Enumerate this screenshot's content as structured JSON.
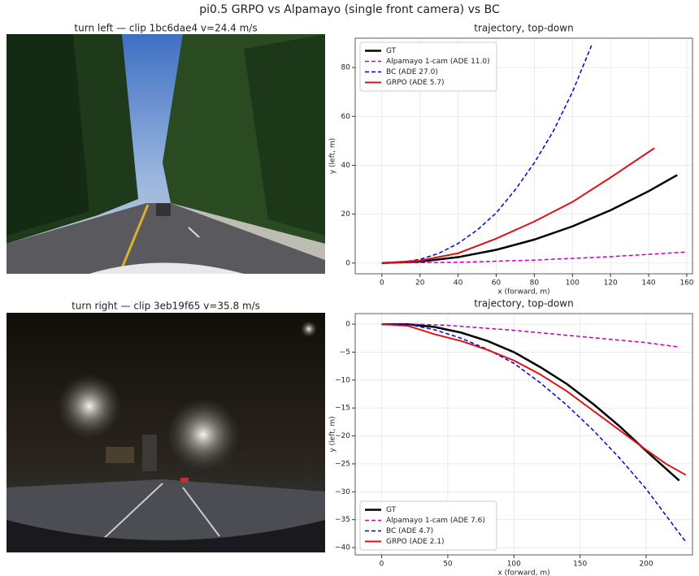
{
  "title": "pi0.5 GRPO vs Alpamayo (single front camera) vs BC",
  "images": [
    {
      "title": "turn left  —  clip 1bc6dae4  v=24.4 m/s"
    },
    {
      "title": "turn right  —  clip 3eb19f65  v=35.8 m/s"
    }
  ],
  "chart_data": [
    {
      "type": "line",
      "title": "trajectory, top-down",
      "xlabel": "x (forward, m)",
      "ylabel": "y (left, m)",
      "xlim": [
        -14,
        163
      ],
      "ylim": [
        -4.4,
        92
      ],
      "xticks": [
        0,
        20,
        40,
        60,
        80,
        100,
        120,
        140,
        160
      ],
      "yticks": [
        0,
        20,
        40,
        60,
        80
      ],
      "grid": true,
      "legend": "upper left",
      "series": [
        {
          "name": "GT",
          "color": "#000000",
          "linestyle": "solid",
          "linewidth": 2.5,
          "x": [
            0,
            20,
            40,
            60,
            80,
            100,
            120,
            140,
            155
          ],
          "values": [
            0,
            0.6,
            2.4,
            5.4,
            9.6,
            15,
            21.6,
            29.4,
            36
          ]
        },
        {
          "name": "Alpamayo 1-cam  (ADE 11.0)",
          "color": "#c000c0",
          "linestyle": "dashed",
          "linewidth": 1.5,
          "x": [
            0,
            40,
            80,
            120,
            160
          ],
          "values": [
            0,
            0.3,
            1.2,
            2.6,
            4.5
          ]
        },
        {
          "name": "BC  (ADE 27.0)",
          "color": "#0000dd",
          "linestyle": "dashed",
          "linewidth": 1.5,
          "x": [
            0,
            10,
            20,
            30,
            40,
            50,
            60,
            70,
            80,
            90,
            100,
            110
          ],
          "values": [
            0,
            0.3,
            1.5,
            4,
            8,
            13.5,
            20.5,
            30,
            41,
            54,
            70,
            89
          ]
        },
        {
          "name": "GRPO  (ADE 5.7)",
          "color": "#dd1111",
          "linestyle": "solid",
          "linewidth": 2,
          "x": [
            0,
            20,
            40,
            60,
            80,
            100,
            120,
            143
          ],
          "values": [
            0,
            1,
            4,
            10,
            17,
            25,
            35,
            47
          ]
        }
      ]
    },
    {
      "type": "line",
      "title": "trajectory, top-down",
      "xlabel": "x (forward, m)",
      "ylabel": "y (left, m)",
      "xlim": [
        -20,
        235
      ],
      "ylim": [
        -41.3,
        1.9
      ],
      "xticks": [
        0,
        50,
        100,
        150,
        200
      ],
      "yticks": [
        0,
        {
          "value": -5,
          "label": "−5"
        },
        {
          "value": -10,
          "label": "−10"
        },
        {
          "value": -15,
          "label": "−15"
        },
        {
          "value": -20,
          "label": "−20"
        },
        {
          "value": -25,
          "label": "−25"
        },
        {
          "value": -30,
          "label": "−30"
        },
        {
          "value": -35,
          "label": "−35"
        },
        {
          "value": -40,
          "label": "−40"
        }
      ],
      "grid": true,
      "legend": "lower left",
      "series": [
        {
          "name": "GT",
          "color": "#000000",
          "linestyle": "solid",
          "linewidth": 2.5,
          "x": [
            0,
            20,
            40,
            60,
            80,
            100,
            120,
            140,
            160,
            180,
            200,
            225
          ],
          "values": [
            0,
            0,
            -0.5,
            -1.5,
            -3,
            -5,
            -7.7,
            -10.7,
            -14.3,
            -18.3,
            -22.7,
            -28
          ]
        },
        {
          "name": "Alpamayo 1-cam  (ADE 7.6)",
          "color": "#c000c0",
          "linestyle": "dashed",
          "linewidth": 1.5,
          "x": [
            0,
            25,
            50,
            100,
            150,
            200,
            225
          ],
          "values": [
            0,
            0,
            -0.2,
            -1.1,
            -2.2,
            -3.3,
            -4.1
          ]
        },
        {
          "name": "BC  (ADE 4.7)",
          "color": "#0000dd",
          "linestyle": "dashed",
          "linewidth": 1.5,
          "x": [
            0,
            20,
            40,
            60,
            80,
            100,
            120,
            140,
            160,
            180,
            200,
            230
          ],
          "values": [
            0,
            0,
            -1,
            -2.5,
            -4.5,
            -7,
            -10.5,
            -14.5,
            -19,
            -24,
            -29.5,
            -39
          ]
        },
        {
          "name": "GRPO  (ADE 2.1)",
          "color": "#dd1111",
          "linestyle": "solid",
          "linewidth": 2,
          "x": [
            0,
            20,
            40,
            60,
            80,
            100,
            120,
            140,
            160,
            180,
            200,
            215,
            230
          ],
          "values": [
            0,
            -0.3,
            -1.8,
            -3,
            -4.6,
            -6.5,
            -9,
            -12,
            -15.5,
            -19,
            -22.5,
            -25,
            -27
          ]
        }
      ]
    }
  ]
}
